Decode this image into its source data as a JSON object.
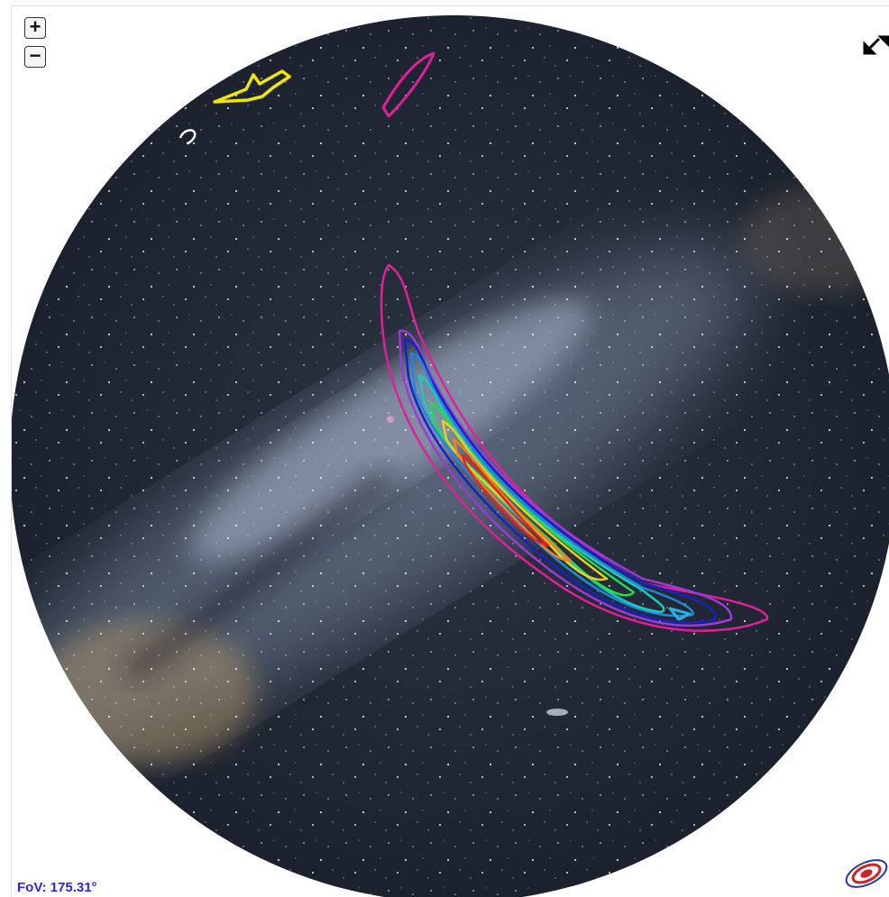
{
  "controls": {
    "zoom_in": "+",
    "zoom_out": "−"
  },
  "status": {
    "fov": "FoV: 175.31°"
  }
}
